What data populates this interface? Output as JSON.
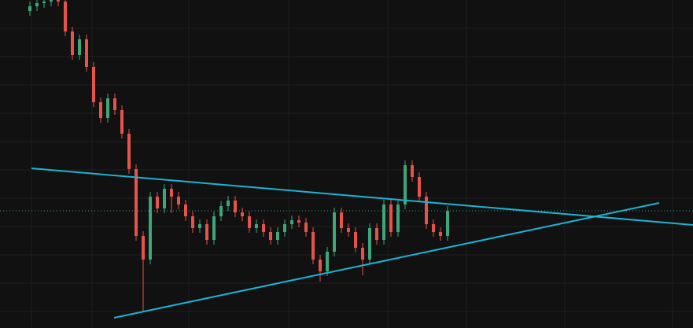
{
  "chart_data": {
    "type": "candlestick",
    "x": [
      38,
      47,
      56,
      65,
      74,
      83,
      92,
      101,
      110,
      119,
      128,
      137,
      146,
      155,
      164,
      173,
      182,
      191,
      200,
      209,
      218,
      227,
      236,
      245,
      254,
      263,
      272,
      281,
      290,
      299,
      308,
      317,
      326,
      335,
      344,
      353,
      362,
      371,
      380,
      389,
      398,
      407,
      416,
      425,
      434,
      443,
      452,
      461,
      470,
      479,
      488,
      497,
      506,
      515,
      524,
      533,
      542,
      551,
      560,
      569
    ],
    "open": [
      403,
      409,
      413,
      415,
      417,
      415,
      377,
      347,
      367,
      332,
      287,
      267,
      292,
      277,
      247,
      202,
      117,
      87,
      167,
      152,
      177,
      167,
      157,
      142,
      127,
      132,
      112,
      142,
      155,
      162,
      147,
      142,
      127,
      132,
      122,
      112,
      122,
      132,
      137,
      134,
      122,
      87,
      72,
      97,
      147,
      127,
      122,
      102,
      87,
      127,
      112,
      157,
      122,
      157,
      207,
      192,
      167,
      132,
      122,
      117
    ],
    "high": [
      415,
      419,
      421,
      423,
      423,
      421,
      383,
      373,
      373,
      338,
      293,
      298,
      298,
      283,
      253,
      208,
      123,
      173,
      173,
      183,
      183,
      173,
      163,
      148,
      138,
      138,
      148,
      161,
      168,
      168,
      153,
      148,
      138,
      138,
      128,
      128,
      138,
      143,
      143,
      140,
      128,
      93,
      103,
      153,
      153,
      133,
      128,
      108,
      133,
      133,
      163,
      163,
      163,
      213,
      213,
      198,
      173,
      138,
      128,
      155
    ],
    "low": [
      397,
      403,
      407,
      409,
      409,
      371,
      341,
      341,
      326,
      281,
      261,
      261,
      271,
      241,
      196,
      111,
      22,
      81,
      146,
      146,
      146,
      151,
      136,
      121,
      121,
      106,
      106,
      136,
      149,
      141,
      136,
      121,
      121,
      116,
      106,
      106,
      116,
      126,
      128,
      116,
      81,
      59,
      66,
      91,
      121,
      116,
      96,
      67,
      81,
      106,
      106,
      116,
      116,
      151,
      186,
      161,
      126,
      116,
      111,
      111
    ],
    "close": [
      409,
      413,
      415,
      417,
      415,
      377,
      347,
      367,
      332,
      287,
      267,
      292,
      277,
      247,
      202,
      117,
      87,
      167,
      152,
      177,
      167,
      157,
      142,
      127,
      132,
      112,
      142,
      155,
      162,
      147,
      142,
      127,
      132,
      122,
      112,
      122,
      132,
      137,
      134,
      122,
      87,
      72,
      97,
      147,
      127,
      122,
      102,
      87,
      127,
      112,
      157,
      122,
      157,
      207,
      192,
      167,
      132,
      122,
      117,
      149
    ],
    "up_color": "#3fa57a",
    "down_color": "#e5534b",
    "xlim": [
      0,
      881
    ],
    "ylim": [
      0,
      417
    ],
    "xticks": [
      40,
      117,
      240,
      367,
      493,
      593,
      718,
      855
    ],
    "yticks": [
      21,
      57,
      93,
      129,
      165,
      201,
      237,
      273,
      309,
      345,
      381
    ],
    "grid": true,
    "trendlines": [
      {
        "color": "#1cb3d3",
        "x": [
          40,
          881
        ],
        "y": [
          203,
          131
        ]
      },
      {
        "color": "#1cb3d3",
        "x": [
          145,
          838
        ],
        "y": [
          13,
          159
        ]
      }
    ],
    "last_price": 149,
    "last_price_color": "#2a9d8f"
  }
}
